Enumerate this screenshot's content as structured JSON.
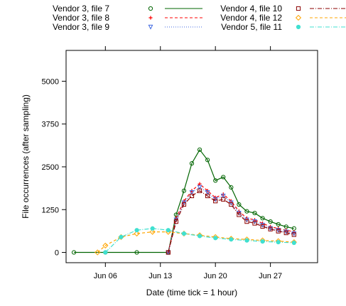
{
  "chart_data": {
    "type": "line",
    "xlabel": "Date (time tick = 1 hour)",
    "ylabel": "File occurrences (after sampling)",
    "xlim": [
      "2014-06-01",
      "2014-07-03"
    ],
    "ylim": [
      -300,
      5900
    ],
    "x_ticks": [
      {
        "date": "2014-06-06",
        "label": "Jun 06"
      },
      {
        "date": "2014-06-13",
        "label": "Jun 13"
      },
      {
        "date": "2014-06-20",
        "label": "Jun 20"
      },
      {
        "date": "2014-06-27",
        "label": "Jun 27"
      }
    ],
    "y_ticks": [
      0,
      1250,
      2500,
      3750,
      5000
    ],
    "grid": false,
    "legend_position": "top, above plot, two columns",
    "series": [
      {
        "name": "Vendor 3, file 7",
        "color": "#006400",
        "marker": "open-circle",
        "line": "solid",
        "x": [
          "2014-06-02",
          "2014-06-06",
          "2014-06-10",
          "2014-06-14",
          "2014-06-15",
          "2014-06-16",
          "2014-06-17",
          "2014-06-18",
          "2014-06-19",
          "2014-06-20",
          "2014-06-21",
          "2014-06-22",
          "2014-06-23",
          "2014-06-24",
          "2014-06-25",
          "2014-06-26",
          "2014-06-27",
          "2014-06-28",
          "2014-06-29",
          "2014-06-30"
        ],
        "y": [
          0,
          0,
          0,
          0,
          1100,
          1800,
          2600,
          3000,
          2700,
          2100,
          2200,
          1900,
          1400,
          1200,
          1150,
          1000,
          900,
          820,
          750,
          700
        ]
      },
      {
        "name": "Vendor 3, file 8",
        "color": "#ff0000",
        "marker": "plus",
        "line": "dashed",
        "x": [
          "2014-06-14",
          "2014-06-15",
          "2014-06-16",
          "2014-06-17",
          "2014-06-18",
          "2014-06-19",
          "2014-06-20",
          "2014-06-21",
          "2014-06-22",
          "2014-06-23",
          "2014-06-24",
          "2014-06-25",
          "2014-06-26",
          "2014-06-27",
          "2014-06-28",
          "2014-06-29",
          "2014-06-30"
        ],
        "y": [
          0,
          1000,
          1500,
          1800,
          2000,
          1800,
          1600,
          1700,
          1500,
          1200,
          1000,
          950,
          850,
          750,
          700,
          650,
          600
        ]
      },
      {
        "name": "Vendor 3, file 9",
        "color": "#4169e1",
        "marker": "open-triangle-down",
        "line": "dotted",
        "x": [
          "2014-06-14",
          "2014-06-15",
          "2014-06-16",
          "2014-06-17",
          "2014-06-18",
          "2014-06-19",
          "2014-06-20",
          "2014-06-21",
          "2014-06-22",
          "2014-06-23",
          "2014-06-24",
          "2014-06-25",
          "2014-06-26",
          "2014-06-27",
          "2014-06-28",
          "2014-06-29",
          "2014-06-30"
        ],
        "y": [
          0,
          950,
          1450,
          1750,
          1900,
          1750,
          1550,
          1650,
          1450,
          1150,
          950,
          900,
          800,
          700,
          650,
          600,
          550
        ]
      },
      {
        "name": "Vendor 4, file 10",
        "color": "#8b0000",
        "marker": "open-square",
        "line": "dashdot",
        "x": [
          "2014-06-14",
          "2014-06-15",
          "2014-06-16",
          "2014-06-17",
          "2014-06-18",
          "2014-06-19",
          "2014-06-20",
          "2014-06-21",
          "2014-06-22",
          "2014-06-23",
          "2014-06-24",
          "2014-06-25",
          "2014-06-26",
          "2014-06-27",
          "2014-06-28",
          "2014-06-29",
          "2014-06-30"
        ],
        "y": [
          0,
          900,
          1400,
          1650,
          1800,
          1650,
          1500,
          1550,
          1400,
          1100,
          900,
          850,
          760,
          680,
          620,
          570,
          520
        ]
      },
      {
        "name": "Vendor 4, file 12",
        "color": "#ffa500",
        "marker": "open-diamond",
        "line": "dashed",
        "x": [
          "2014-06-05",
          "2014-06-06",
          "2014-06-08",
          "2014-06-10",
          "2014-06-12",
          "2014-06-14",
          "2014-06-16",
          "2014-06-18",
          "2014-06-20",
          "2014-06-22",
          "2014-06-24",
          "2014-06-26",
          "2014-06-28",
          "2014-06-30"
        ],
        "y": [
          0,
          200,
          450,
          550,
          600,
          600,
          550,
          500,
          450,
          400,
          380,
          350,
          330,
          300
        ]
      },
      {
        "name": "Vendor 5, file 11",
        "color": "#40e0d0",
        "marker": "filled-circle",
        "line": "dashdot",
        "x": [
          "2014-06-06",
          "2014-06-08",
          "2014-06-10",
          "2014-06-12",
          "2014-06-14",
          "2014-06-16",
          "2014-06-18",
          "2014-06-20",
          "2014-06-22",
          "2014-06-24",
          "2014-06-26",
          "2014-06-28",
          "2014-06-30"
        ],
        "y": [
          0,
          450,
          650,
          700,
          650,
          550,
          480,
          420,
          380,
          350,
          320,
          300,
          280
        ]
      }
    ]
  }
}
